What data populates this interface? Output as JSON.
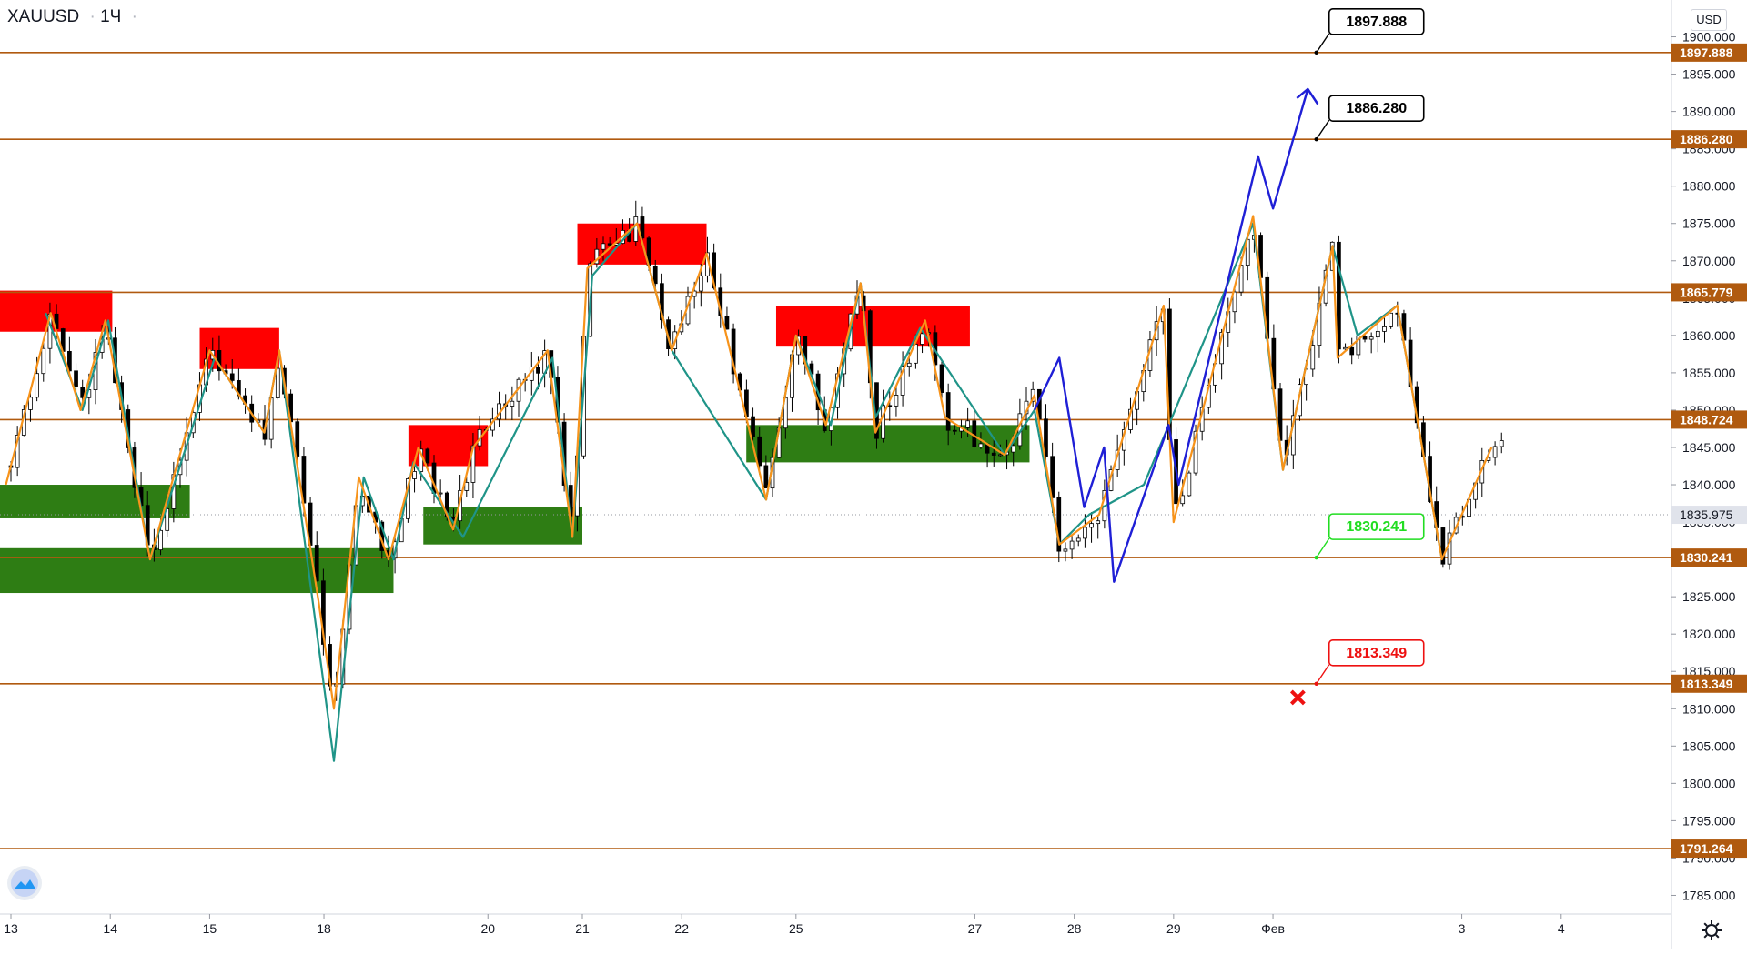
{
  "header": {
    "symbol": "XAUUSD",
    "interval": "1Ч",
    "currency": "USD"
  },
  "colors": {
    "level_line": "#b05a0f",
    "level_label_bg": "#b05a0f",
    "current_price_bg": "#e0e3eb",
    "supply_zone": "#ff0000",
    "demand_zone": "#2e7d14",
    "zigzag_orange": "#f7931a",
    "zigzag_teal": "#1f9488",
    "projection": "#1f1fd6",
    "target_label_border": "#000000",
    "entry_label": "#22dd22",
    "stop_label": "#ee1111"
  },
  "chart_data": {
    "type": "candlestick",
    "ylim": [
      1782.5,
      1902.5
    ],
    "y_ticks": [
      1785,
      1790,
      1795,
      1800,
      1805,
      1810,
      1815,
      1820,
      1825,
      1830,
      1835,
      1840,
      1845,
      1850,
      1855,
      1860,
      1865,
      1870,
      1875,
      1880,
      1885,
      1890,
      1895,
      1900
    ],
    "y_tick_labels": [
      "1785.000",
      "1790.000",
      "1795.000",
      "1800.000",
      "1805.000",
      "1810.000",
      "1815.000",
      "1820.000",
      "1825.000",
      "1830.000",
      "1835.000",
      "1840.000",
      "1845.000",
      "1850.000",
      "1855.000",
      "1860.000",
      "1865.000",
      "1870.000",
      "1875.000",
      "1880.000",
      "1885.000",
      "1890.000",
      "1895.000",
      "1900.000"
    ],
    "x_ticks": [
      "13",
      "14",
      "15",
      "18",
      "20",
      "21",
      "22",
      "25",
      "27",
      "28",
      "29",
      "Фев",
      "3",
      "4"
    ],
    "x_tick_positions": [
      0.0,
      1.0,
      2.0,
      3.15,
      4.8,
      5.75,
      6.75,
      7.9,
      9.7,
      10.7,
      11.7,
      12.7,
      14.6,
      15.6
    ],
    "x_range": [
      0,
      16.6
    ],
    "horizontal_levels": [
      {
        "price": 1897.888,
        "label": "1897.888"
      },
      {
        "price": 1886.28,
        "label": "1886.280"
      },
      {
        "price": 1865.779,
        "label": "1865.779"
      },
      {
        "price": 1848.724,
        "label": "1848.724"
      },
      {
        "price": 1830.241,
        "label": "1830.241"
      },
      {
        "price": 1813.349,
        "label": "1813.349"
      },
      {
        "price": 1791.264,
        "label": "1791.264"
      }
    ],
    "current_price": {
      "price": 1835.975,
      "label": "1835.975"
    },
    "supply_zones": [
      {
        "x0": -0.2,
        "x1": 1.02,
        "y0": 1860.5,
        "y1": 1866.0
      },
      {
        "x0": 1.9,
        "x1": 2.7,
        "y0": 1855.5,
        "y1": 1861.0
      },
      {
        "x0": 4.0,
        "x1": 4.8,
        "y0": 1842.5,
        "y1": 1848.0
      },
      {
        "x0": 5.7,
        "x1": 7.0,
        "y0": 1869.5,
        "y1": 1875.0
      },
      {
        "x0": 7.7,
        "x1": 9.65,
        "y0": 1858.5,
        "y1": 1864.0
      }
    ],
    "demand_zones": [
      {
        "x0": -0.2,
        "x1": 1.8,
        "y0": 1835.5,
        "y1": 1840.0
      },
      {
        "x0": -0.2,
        "x1": 3.85,
        "y0": 1825.5,
        "y1": 1831.5
      },
      {
        "x0": 4.15,
        "x1": 5.75,
        "y0": 1832.0,
        "y1": 1837.0
      },
      {
        "x0": 7.4,
        "x1": 10.25,
        "y0": 1843.0,
        "y1": 1848.0
      }
    ],
    "zigzag_orange": [
      [
        -0.05,
        1840
      ],
      [
        0.4,
        1863
      ],
      [
        0.7,
        1850
      ],
      [
        0.95,
        1862
      ],
      [
        1.4,
        1830
      ],
      [
        2.0,
        1858
      ],
      [
        2.55,
        1847
      ],
      [
        2.7,
        1858
      ],
      [
        3.1,
        1824
      ],
      [
        3.25,
        1810
      ],
      [
        3.5,
        1841
      ],
      [
        3.8,
        1830
      ],
      [
        4.1,
        1845
      ],
      [
        4.45,
        1834
      ],
      [
        4.65,
        1845
      ],
      [
        5.4,
        1858
      ],
      [
        5.65,
        1833
      ],
      [
        5.8,
        1869
      ],
      [
        6.3,
        1875
      ],
      [
        6.65,
        1858
      ],
      [
        7.0,
        1871
      ],
      [
        7.6,
        1838
      ],
      [
        7.9,
        1860
      ],
      [
        8.2,
        1848
      ],
      [
        8.55,
        1867
      ],
      [
        8.7,
        1847
      ],
      [
        9.2,
        1862
      ],
      [
        9.4,
        1849
      ],
      [
        10.0,
        1844
      ],
      [
        10.3,
        1852
      ],
      [
        10.55,
        1832
      ],
      [
        10.95,
        1836
      ],
      [
        11.6,
        1864
      ],
      [
        11.7,
        1835
      ],
      [
        12.5,
        1876
      ],
      [
        12.8,
        1842
      ],
      [
        13.3,
        1872
      ],
      [
        13.35,
        1857
      ],
      [
        13.95,
        1864
      ],
      [
        14.4,
        1830
      ],
      [
        14.9,
        1845
      ]
    ],
    "zigzag_teal": [
      [
        0.35,
        1863
      ],
      [
        0.72,
        1850
      ],
      [
        0.98,
        1862
      ],
      [
        1.4,
        1830
      ],
      [
        2.05,
        1857
      ],
      [
        2.55,
        1847
      ],
      [
        2.7,
        1858
      ],
      [
        3.25,
        1803
      ],
      [
        3.55,
        1841
      ],
      [
        3.85,
        1830
      ],
      [
        4.05,
        1843
      ],
      [
        4.55,
        1833
      ],
      [
        5.45,
        1857
      ],
      [
        5.65,
        1833
      ],
      [
        5.85,
        1868
      ],
      [
        6.3,
        1875
      ],
      [
        6.65,
        1858
      ],
      [
        7.6,
        1838
      ],
      [
        7.9,
        1860
      ],
      [
        8.25,
        1848
      ],
      [
        8.55,
        1867
      ],
      [
        8.7,
        1849
      ],
      [
        9.15,
        1861
      ],
      [
        10.0,
        1844
      ],
      [
        10.3,
        1850
      ],
      [
        10.55,
        1832
      ],
      [
        10.85,
        1836
      ],
      [
        11.4,
        1840
      ],
      [
        12.5,
        1875
      ],
      [
        12.8,
        1842
      ],
      [
        13.3,
        1872
      ],
      [
        13.55,
        1860
      ],
      [
        13.95,
        1864
      ],
      [
        14.4,
        1830
      ]
    ],
    "projection_path": [
      [
        10.3,
        1850
      ],
      [
        10.55,
        1857
      ],
      [
        10.8,
        1837
      ],
      [
        11.0,
        1845
      ],
      [
        11.1,
        1827
      ],
      [
        11.65,
        1848
      ],
      [
        11.75,
        1840
      ],
      [
        12.55,
        1884
      ],
      [
        12.7,
        1877
      ],
      [
        13.05,
        1893
      ],
      [
        13.15,
        1891
      ]
    ],
    "price_labels": [
      {
        "text": "1897.888",
        "price": 1897.888,
        "x": 13.1,
        "style": "target"
      },
      {
        "text": "1886.280",
        "price": 1886.28,
        "x": 13.1,
        "style": "target"
      },
      {
        "text": "1830.241",
        "price": 1830.241,
        "x": 13.1,
        "style": "entry"
      },
      {
        "text": "1813.349",
        "price": 1813.349,
        "x": 13.1,
        "style": "stop"
      }
    ],
    "stop_marker": {
      "x": 12.95,
      "price": 1811.5
    },
    "seed": 20210131,
    "candle_count": 230
  }
}
